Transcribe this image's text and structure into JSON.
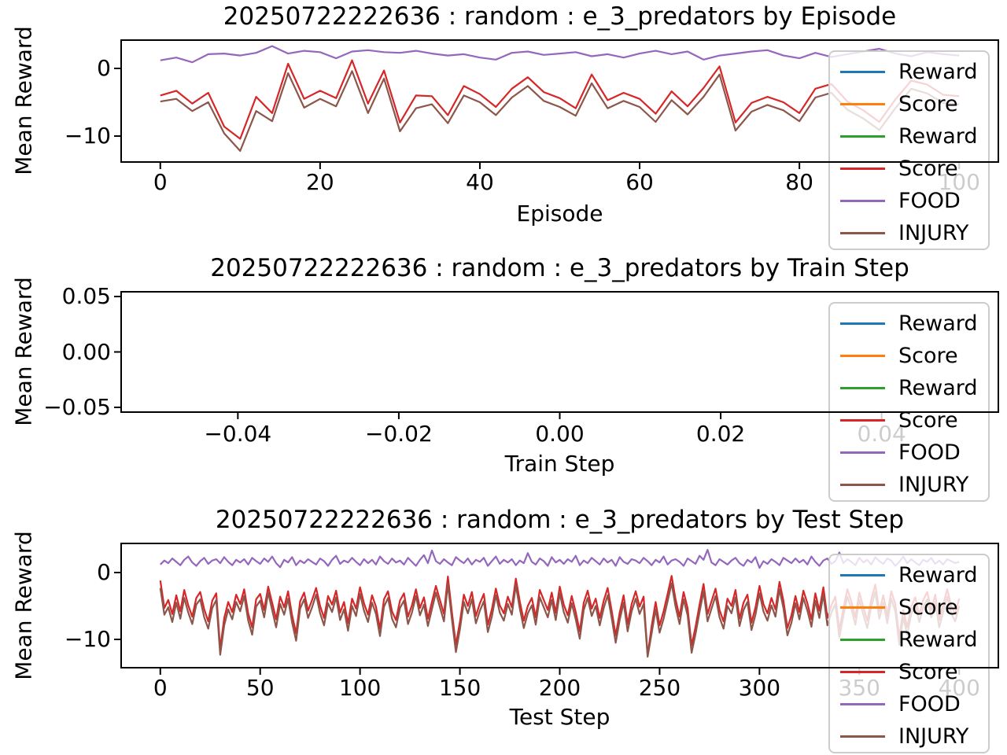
{
  "figure": {
    "background": "#ffffff"
  },
  "legend": {
    "entries": [
      {
        "label": "Reward",
        "color": "#1f77b4"
      },
      {
        "label": "Score",
        "color": "#ff7f0e"
      },
      {
        "label": "Reward",
        "color": "#2ca02c"
      },
      {
        "label": "Score",
        "color": "#d62728"
      },
      {
        "label": "FOOD",
        "color": "#9467bd"
      },
      {
        "label": "INJURY",
        "color": "#8c564b"
      }
    ]
  },
  "chart_data": [
    {
      "type": "line",
      "title": "20250722222636 : random : e_3_predators by Episode",
      "xlabel": "Episode",
      "ylabel": "Mean Reward",
      "xlim": [
        -5,
        105
      ],
      "ylim": [
        -13.95,
        4.3
      ],
      "grid": false,
      "legend_position": "upper right, overflowing below axes",
      "xticks": {
        "values": [
          0,
          20,
          40,
          60,
          80,
          100
        ],
        "labels": [
          "0",
          "20",
          "40",
          "60",
          "80",
          "100"
        ]
      },
      "yticks": {
        "values": [
          0,
          -10
        ],
        "labels": [
          "0",
          "−10"
        ]
      },
      "x_start": 0,
      "x_step": 2,
      "series": [
        {
          "name": "Score",
          "color": "#d62728",
          "values": [
            -4.0,
            -3.3,
            -5.2,
            -3.6,
            -8.6,
            -10.4,
            -4.2,
            -6.6,
            0.7,
            -4.5,
            -3.3,
            -4.4,
            1.2,
            -5.2,
            -0.3,
            -8.0,
            -4.0,
            -4.1,
            -6.9,
            -2.6,
            -3.8,
            -5.7,
            -3.0,
            -1.3,
            -3.5,
            -4.4,
            -5.9,
            -0.9,
            -4.7,
            -3.6,
            -4.5,
            -6.7,
            -3.4,
            -5.6,
            -2.9,
            0.3,
            -8.0,
            -5.1,
            -4.2,
            -5.0,
            -6.6,
            -3.0,
            -2.3,
            -4.9,
            -6.2,
            -7.9,
            -4.6,
            -1.8,
            -2.4,
            -3.9,
            -4.1
          ]
        },
        {
          "name": "FOOD",
          "color": "#9467bd",
          "values": [
            1.2,
            1.6,
            0.9,
            2.1,
            2.2,
            1.9,
            2.3,
            3.3,
            2.2,
            2.6,
            2.4,
            1.5,
            2.5,
            2.7,
            2.4,
            2.3,
            2.6,
            2.2,
            1.9,
            2.1,
            1.6,
            1.3,
            2.3,
            2.5,
            2.0,
            2.2,
            2.4,
            1.8,
            2.1,
            1.6,
            2.2,
            2.6,
            2.1,
            2.5,
            1.3,
            1.9,
            2.2,
            2.5,
            2.7,
            1.9,
            1.5,
            2.3,
            1.7,
            2.1,
            2.5,
            2.9,
            2.2,
            1.8,
            2.4,
            2.1,
            1.9
          ]
        },
        {
          "name": "INJURY",
          "color": "#8c564b",
          "values": [
            -4.9,
            -4.5,
            -6.3,
            -5.0,
            -9.6,
            -12.2,
            -6.3,
            -7.8,
            -0.7,
            -5.8,
            -4.5,
            -5.6,
            -0.4,
            -6.6,
            -1.5,
            -9.3,
            -5.9,
            -5.3,
            -8.1,
            -4.0,
            -5.0,
            -6.9,
            -4.3,
            -2.6,
            -4.8,
            -5.7,
            -7.0,
            -2.2,
            -5.9,
            -4.8,
            -5.7,
            -7.9,
            -4.7,
            -6.8,
            -4.2,
            -0.9,
            -9.2,
            -6.4,
            -5.4,
            -6.2,
            -7.8,
            -4.3,
            -3.6,
            -6.1,
            -7.4,
            -9.1,
            -5.9,
            -3.0,
            -3.7,
            -5.1,
            -5.3
          ]
        }
      ]
    },
    {
      "type": "line",
      "title": "20250722222636 : random : e_3_predators by Train Step",
      "xlabel": "Train Step",
      "ylabel": "Mean Reward",
      "xlim": [
        -0.0546,
        0.0546
      ],
      "ylim": [
        -0.055,
        0.055
      ],
      "grid": false,
      "legend_position": "upper right, overflowing below axes",
      "xticks": {
        "values": [
          -0.04,
          -0.02,
          0.0,
          0.02,
          0.04
        ],
        "labels": [
          "−0.04",
          "−0.02",
          "0.00",
          "0.02",
          "0.04"
        ]
      },
      "yticks": {
        "values": [
          0.05,
          0.0,
          -0.05
        ],
        "labels": [
          "0.05",
          "0.00",
          "−0.05"
        ]
      },
      "x_start": 0,
      "x_step": 1,
      "series": []
    },
    {
      "type": "line",
      "title": "20250722222636 : random : e_3_predators by Test Step",
      "xlabel": "Test Step",
      "ylabel": "Mean Reward",
      "xlim": [
        -20,
        420
      ],
      "ylim": [
        -14.35,
        4.47
      ],
      "grid": false,
      "legend_position": "upper right, overflowing below axes",
      "xticks": {
        "values": [
          0,
          50,
          100,
          150,
          200,
          250,
          300,
          350,
          400
        ],
        "labels": [
          "0",
          "50",
          "100",
          "150",
          "200",
          "250",
          "300",
          "350",
          "400"
        ]
      },
      "yticks": {
        "values": [
          0,
          -10
        ],
        "labels": [
          "0",
          "−10"
        ]
      },
      "x_start": 0,
      "x_step": 2,
      "series": [
        {
          "name": "Score",
          "color": "#d62728",
          "values": [
            -1.2,
            -5.3,
            -4.1,
            -6.2,
            -3.4,
            -5.8,
            -2.6,
            -4.9,
            -6.6,
            -3.8,
            -2.9,
            -5.5,
            -7.3,
            -4.2,
            -3.1,
            -11.4,
            -6.8,
            -4.4,
            -5.9,
            -3.3,
            -4.7,
            -2.5,
            -6.1,
            -8.2,
            -4.0,
            -3.2,
            -5.6,
            -2.1,
            -4.5,
            -7.0,
            -3.6,
            -5.2,
            -2.8,
            -6.4,
            -9.1,
            -4.3,
            -3.0,
            -5.7,
            -4.1,
            -2.3,
            -5.0,
            -6.8,
            -3.5,
            -4.8,
            -2.7,
            -6.0,
            -4.4,
            -7.6,
            -3.9,
            -5.4,
            -2.2,
            -4.6,
            -6.3,
            -3.4,
            -5.1,
            -8.4,
            -4.0,
            -2.8,
            -5.8,
            -7.1,
            -4.2,
            -3.1,
            -6.6,
            -4.9,
            -2.5,
            -5.3,
            -3.7,
            -6.9,
            -4.4,
            -2.0,
            -4.1,
            -6.2,
            -0.6,
            -5.9,
            -10.8,
            -7.4,
            -3.3,
            -5.0,
            -2.9,
            -6.5,
            -4.6,
            -3.2,
            -7.8,
            -5.5,
            -2.4,
            -4.9,
            -6.1,
            -3.6,
            -5.2,
            -0.9,
            -4.3,
            -7.2,
            -5.0,
            -3.8,
            -6.7,
            -2.6,
            -4.1,
            -5.6,
            -3.0,
            -6.0,
            -2.1,
            -4.8,
            -6.4,
            -3.5,
            -5.9,
            -8.8,
            -4.5,
            -2.7,
            -5.4,
            -3.9,
            -6.8,
            -4.2,
            -2.3,
            -5.7,
            -9.4,
            -6.0,
            -3.4,
            -7.7,
            -4.7,
            -2.8,
            -5.1,
            -3.6,
            -12.4,
            -8.0,
            -4.4,
            -7.9,
            -5.8,
            -3.2,
            -0.5,
            -4.0,
            -6.6,
            -2.9,
            -5.3,
            -10.9,
            -8.1,
            -4.8,
            -1.7,
            -6.2,
            -4.3,
            -2.4,
            -5.6,
            -7.3,
            -3.9,
            -5.0,
            -2.6,
            -6.9,
            -4.5,
            -3.3,
            -7.5,
            -5.2,
            -2.0,
            -4.7,
            -6.1,
            -3.8,
            -5.5,
            -1.4,
            -4.2,
            -8.3,
            -6.4,
            -3.5,
            -5.9,
            -2.7,
            -4.6,
            -7.0,
            -3.1,
            -5.7,
            -2.2,
            -6.8,
            -4.9,
            -3.6,
            -8.6,
            -5.4,
            -2.5,
            -4.3,
            -6.7,
            -3.0,
            -5.2,
            -7.2,
            -4.0,
            -1.8,
            -5.8,
            -3.4,
            -6.5,
            -2.8,
            -4.7,
            -9.7,
            -5.6,
            -8.2,
            -5.1,
            -3.7,
            -6.3,
            -4.1,
            -2.9,
            -5.6,
            -3.3,
            -7.1,
            -4.8,
            -2.5,
            -5.0,
            -6.2,
            -3.9
          ]
        },
        {
          "name": "FOOD",
          "color": "#9467bd",
          "values": [
            1.2,
            1.8,
            1.4,
            2.1,
            1.6,
            1.1,
            1.9,
            2.4,
            1.5,
            1.0,
            1.7,
            2.2,
            1.3,
            1.8,
            2.0,
            1.4,
            2.3,
            1.6,
            1.1,
            1.9,
            1.5,
            2.0,
            1.2,
            2.2,
            1.7,
            1.3,
            2.1,
            1.6,
            2.4,
            1.4,
            0.8,
            1.9,
            1.5,
            2.3,
            1.1,
            1.8,
            1.4,
            2.0,
            1.6,
            1.2,
            2.1,
            1.7,
            1.0,
            1.9,
            2.5,
            1.3,
            1.8,
            1.5,
            2.2,
            1.6,
            1.1,
            2.0,
            1.4,
            1.9,
            1.2,
            2.4,
            1.7,
            1.3,
            2.1,
            1.5,
            1.8,
            1.2,
            2.2,
            1.6,
            1.0,
            1.9,
            2.6,
            1.4,
            3.3,
            1.7,
            1.3,
            2.0,
            1.5,
            1.1,
            2.3,
            1.8,
            1.4,
            2.1,
            1.2,
            1.9,
            1.6,
            2.2,
            1.0,
            1.7,
            2.4,
            1.3,
            1.9,
            1.5,
            2.0,
            1.1,
            1.8,
            1.4,
            2.9,
            1.6,
            1.2,
            2.1,
            1.7,
            1.0,
            2.3,
            1.5,
            1.9,
            1.3,
            2.0,
            1.6,
            2.5,
            1.1,
            1.8,
            1.4,
            2.2,
            1.7,
            1.2,
            2.1,
            1.5,
            1.9,
            1.0,
            2.3,
            1.6,
            1.3,
            2.0,
            1.8,
            1.4,
            2.2,
            1.7,
            1.1,
            1.9,
            1.5,
            2.4,
            1.2,
            1.8,
            2.0,
            1.6,
            1.0,
            2.1,
            1.7,
            1.3,
            2.5,
            1.9,
            3.4,
            1.5,
            1.1,
            2.0,
            1.6,
            1.2,
            1.8,
            2.2,
            1.4,
            1.0,
            1.9,
            1.5,
            2.3,
            0.7,
            1.7,
            1.3,
            2.0,
            1.6,
            1.1,
            2.2,
            1.8,
            1.4,
            2.1,
            1.5,
            1.9,
            1.2,
            2.4,
            1.6,
            1.0,
            1.8,
            2.1,
            1.3,
            1.7,
            3.0,
            1.4,
            2.0,
            1.6,
            1.1,
            2.2,
            1.5,
            1.9,
            1.2,
            2.3,
            1.7,
            1.3,
            2.1,
            1.8,
            1.0,
            1.6,
            2.4,
            1.4,
            2.0,
            1.5,
            1.1,
            1.9,
            1.6,
            2.2,
            1.3,
            1.8,
            1.2,
            2.0,
            1.7,
            1.4,
            1.6
          ]
        },
        {
          "name": "INJURY",
          "color": "#8c564b",
          "values": [
            -2.3,
            -6.3,
            -5.2,
            -7.4,
            -4.5,
            -6.9,
            -3.8,
            -6.0,
            -7.7,
            -4.8,
            -4.0,
            -6.7,
            -8.4,
            -5.3,
            -4.1,
            -12.3,
            -7.9,
            -5.5,
            -7.0,
            -4.4,
            -5.8,
            -3.5,
            -7.2,
            -9.3,
            -5.1,
            -4.2,
            -6.7,
            -3.0,
            -5.6,
            -8.2,
            -4.7,
            -6.3,
            -3.9,
            -7.5,
            -10.2,
            -5.4,
            -4.0,
            -6.8,
            -5.2,
            -3.3,
            -6.1,
            -7.9,
            -4.6,
            -5.9,
            -3.7,
            -7.1,
            -5.5,
            -8.7,
            -5.0,
            -6.5,
            -3.2,
            -5.7,
            -7.4,
            -4.5,
            -6.2,
            -9.5,
            -5.1,
            -3.8,
            -6.9,
            -8.2,
            -5.3,
            -4.2,
            -7.7,
            -6.0,
            -3.5,
            -6.4,
            -4.8,
            -8.0,
            -5.5,
            -3.0,
            -5.2,
            -7.3,
            -1.7,
            -7.0,
            -11.9,
            -8.5,
            -4.4,
            -6.1,
            -4.0,
            -7.6,
            -5.7,
            -4.3,
            -8.9,
            -6.6,
            -3.4,
            -6.0,
            -7.2,
            -4.7,
            -6.3,
            -1.9,
            -5.4,
            -8.3,
            -6.1,
            -4.9,
            -7.8,
            -3.7,
            -5.2,
            -6.7,
            -4.1,
            -7.1,
            -3.1,
            -5.9,
            -7.5,
            -4.6,
            -7.0,
            -9.9,
            -5.6,
            -3.8,
            -6.5,
            -5.0,
            -7.9,
            -5.3,
            -3.4,
            -6.8,
            -10.5,
            -7.1,
            -4.5,
            -8.8,
            -5.8,
            -3.9,
            -6.2,
            -4.7,
            -12.6,
            -9.1,
            -5.5,
            -9.0,
            -6.9,
            -4.3,
            -1.6,
            -5.1,
            -7.7,
            -4.0,
            -6.4,
            -12.0,
            -9.2,
            -5.9,
            -2.8,
            -7.3,
            -5.4,
            -3.5,
            -6.7,
            -8.4,
            -5.0,
            -6.1,
            -3.7,
            -8.0,
            -5.6,
            -4.4,
            -8.6,
            -6.3,
            -3.1,
            -5.8,
            -7.2,
            -4.9,
            -6.6,
            -2.5,
            -5.3,
            -9.4,
            -7.5,
            -4.6,
            -7.0,
            -3.8,
            -5.7,
            -8.1,
            -4.2,
            -6.8,
            -3.3,
            -7.9,
            -6.0,
            -4.7,
            -9.7,
            -6.5,
            -3.6,
            -5.4,
            -7.8,
            -4.1,
            -6.3,
            -8.3,
            -5.1,
            -2.9,
            -6.9,
            -4.5,
            -7.6,
            -3.9,
            -5.8,
            -10.8,
            -6.7,
            -9.3,
            -6.2,
            -4.8,
            -7.4,
            -5.2,
            -4.0,
            -6.7,
            -4.4,
            -8.2,
            -5.9,
            -3.6,
            -6.1,
            -7.3,
            -5.0
          ]
        }
      ]
    }
  ]
}
